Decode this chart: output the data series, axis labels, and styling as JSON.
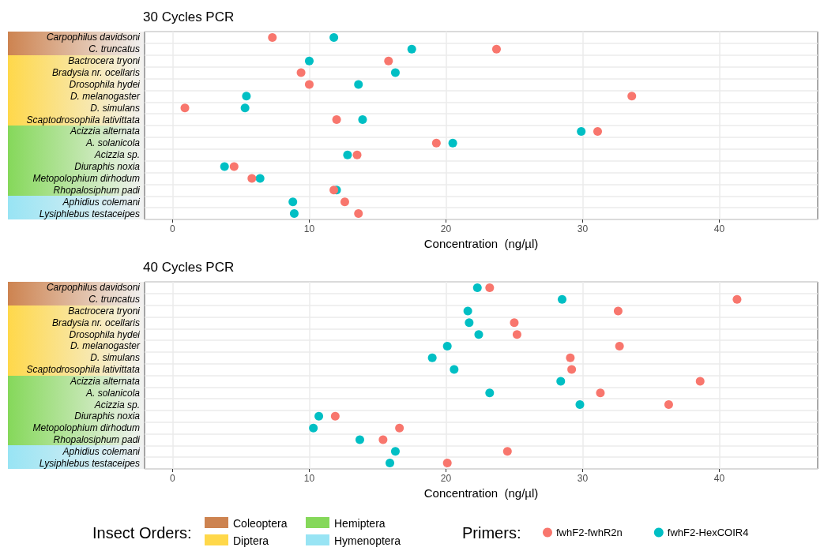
{
  "chart_data": [
    {
      "type": "scatter",
      "title": "30 Cycles PCR",
      "xlabel": "Concentration  (ng/µl)",
      "categories": [
        "Carpophilus davidsoni",
        "C. truncatus",
        "Bactrocera tryoni",
        "Bradysia nr. ocellaris",
        "Drosophila hydei",
        "D. melanogaster",
        "D. simulans",
        "Scaptodrosophila lativittata",
        "Acizzia alternata",
        "A. solanicola",
        "Acizzia sp.",
        "Diuraphis noxia",
        "Metopolophium dirhodum",
        "Rhopalosiphum padi",
        "Aphidius colemani",
        "Lysiphlebus testaceipes"
      ],
      "orientation": "horizontal",
      "xlim": [
        -2.05,
        47.2
      ],
      "xticks": [
        0,
        10,
        20,
        30,
        40
      ],
      "grid": true,
      "marker": "circle",
      "legend": false,
      "series": [
        {
          "color": "#f8766d",
          "values": [
            7.3,
            23.7,
            15.8,
            9.4,
            10.0,
            33.6,
            0.9,
            12.0,
            31.1,
            19.3,
            13.5,
            4.5,
            5.8,
            11.8,
            12.6,
            13.6
          ]
        },
        {
          "color": "#00bfc4",
          "values": [
            11.8,
            17.5,
            10.0,
            16.3,
            13.6,
            5.4,
            5.3,
            13.9,
            29.9,
            20.5,
            12.8,
            3.8,
            6.4,
            12.0,
            8.8,
            8.9
          ]
        }
      ]
    },
    {
      "type": "scatter",
      "title": "40 Cycles PCR",
      "xlabel": "Concentration  (ng/µl)",
      "categories": [
        "Carpophilus davidsoni",
        "C. truncatus",
        "Bactrocera tryoni",
        "Bradysia nr. ocellaris",
        "Drosophila hydei",
        "D. melanogaster",
        "D. simulans",
        "Scaptodrosophila lativittata",
        "Acizzia alternata",
        "A. solanicola",
        "Acizzia sp.",
        "Diuraphis noxia",
        "Metopolophium dirhodum",
        "Rhopalosiphum padi",
        "Aphidius colemani",
        "Lysiphlebus testaceipes"
      ],
      "orientation": "horizontal",
      "xlim": [
        -2.05,
        47.2
      ],
      "xticks": [
        0,
        10,
        20,
        30,
        40
      ],
      "grid": true,
      "marker": "circle",
      "legend": "bottom",
      "legend_title": "Primers:",
      "annotations": [
        "Insect Orders:",
        "Coleoptera",
        "Diptera",
        "Hemiptera",
        "Hymenoptera"
      ],
      "series": [
        {
          "name": "fwhF2-fwhR2n",
          "color": "#f8766d",
          "values": [
            23.2,
            41.3,
            32.6,
            25.0,
            25.2,
            32.7,
            29.1,
            29.2,
            38.6,
            31.3,
            36.3,
            11.9,
            16.6,
            15.4,
            24.5,
            20.1
          ]
        },
        {
          "name": "fwhF2-HexCOIR4",
          "color": "#00bfc4",
          "values": [
            22.3,
            28.5,
            21.6,
            21.7,
            22.4,
            20.1,
            19.0,
            20.6,
            28.4,
            23.2,
            29.8,
            10.7,
            10.3,
            13.7,
            16.3,
            15.9
          ]
        }
      ]
    }
  ]
}
